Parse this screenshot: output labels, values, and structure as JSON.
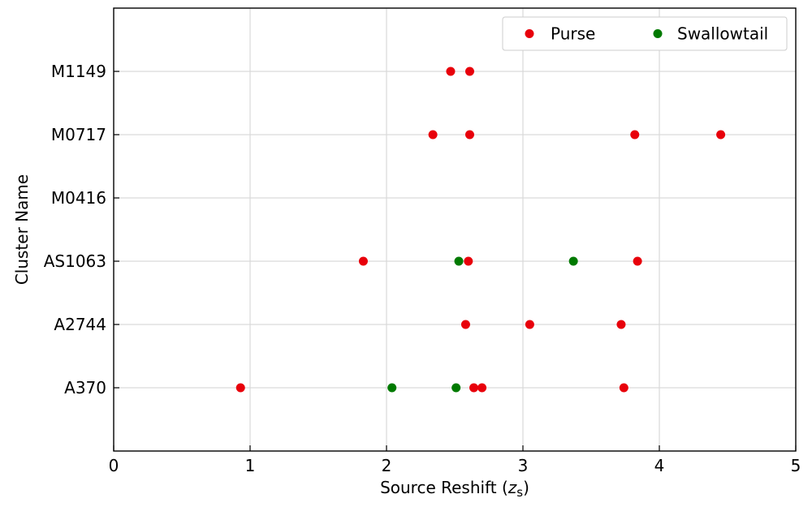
{
  "chart_data": {
    "type": "scatter",
    "title": "",
    "xlabel": "Source Reshift (",
    "xlabel_var": "z",
    "xlabel_sub": "s",
    "xlabel_close": ")",
    "ylabel": "Cluster Name",
    "xlim": [
      0,
      5
    ],
    "xticks": [
      "0",
      "1",
      "2",
      "3",
      "4",
      "5"
    ],
    "categories": [
      "A370",
      "A2744",
      "AS1063",
      "M0416",
      "M0717",
      "M1149"
    ],
    "grid": true,
    "legend_position": "top-right",
    "series": [
      {
        "name": "Purse",
        "color": "#e8000b",
        "points": [
          {
            "x": 2.47,
            "y": "M1149"
          },
          {
            "x": 2.61,
            "y": "M1149"
          },
          {
            "x": 2.34,
            "y": "M0717"
          },
          {
            "x": 2.61,
            "y": "M0717"
          },
          {
            "x": 3.82,
            "y": "M0717"
          },
          {
            "x": 4.45,
            "y": "M0717"
          },
          {
            "x": 1.83,
            "y": "AS1063"
          },
          {
            "x": 2.6,
            "y": "AS1063"
          },
          {
            "x": 3.84,
            "y": "AS1063"
          },
          {
            "x": 2.58,
            "y": "A2744"
          },
          {
            "x": 3.05,
            "y": "A2744"
          },
          {
            "x": 3.72,
            "y": "A2744"
          },
          {
            "x": 0.93,
            "y": "A370"
          },
          {
            "x": 2.64,
            "y": "A370"
          },
          {
            "x": 2.7,
            "y": "A370"
          },
          {
            "x": 3.74,
            "y": "A370"
          }
        ]
      },
      {
        "name": "Swallowtail",
        "color": "#007a00",
        "points": [
          {
            "x": 2.53,
            "y": "AS1063"
          },
          {
            "x": 3.37,
            "y": "AS1063"
          },
          {
            "x": 2.04,
            "y": "A370"
          },
          {
            "x": 2.51,
            "y": "A370"
          }
        ]
      }
    ]
  }
}
